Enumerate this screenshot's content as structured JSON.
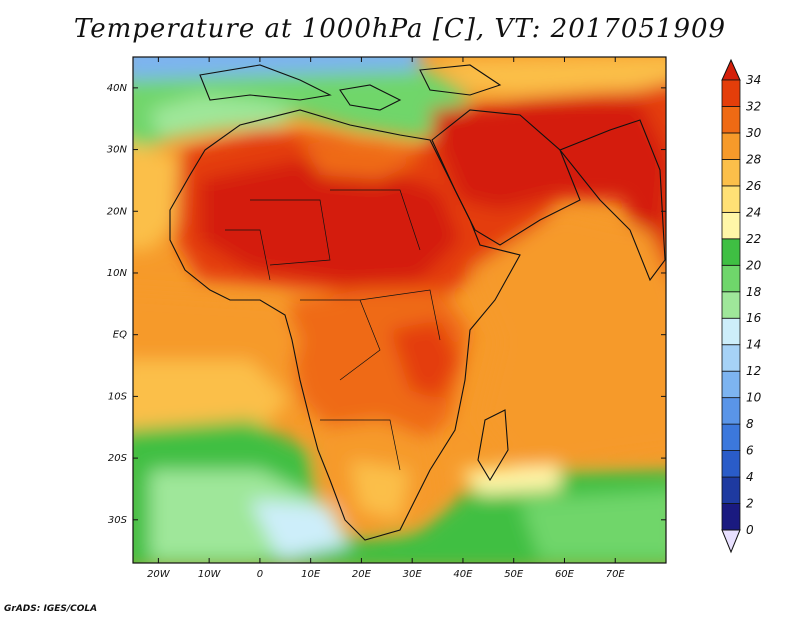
{
  "title": "Temperature at 1000hPa [C], VT: 2017051909",
  "credit": "GrADS: IGES/COLA",
  "map": {
    "variable": "Temperature at 1000hPa",
    "units": "C",
    "valid_time": "2017051909",
    "lon_range": [
      -25,
      80
    ],
    "lat_range": [
      -37,
      45
    ],
    "lon_ticks": [
      "20W",
      "10W",
      "0",
      "10E",
      "20E",
      "30E",
      "40E",
      "50E",
      "60E",
      "70E"
    ],
    "lat_ticks": [
      "40N",
      "30N",
      "20N",
      "10N",
      "EQ",
      "10S",
      "20S",
      "30S"
    ]
  },
  "colorbar": {
    "levels": [
      "0",
      "2",
      "4",
      "6",
      "8",
      "10",
      "12",
      "14",
      "16",
      "18",
      "20",
      "22",
      "24",
      "26",
      "28",
      "30",
      "32",
      "34"
    ],
    "colors": [
      "#1a1a80",
      "#1e3aa0",
      "#2a5cc8",
      "#3c78dc",
      "#5a95e8",
      "#7db4f0",
      "#a6d2f6",
      "#cdeefa",
      "#9fe79a",
      "#6fd66b",
      "#3fbf43",
      "#fff6a8",
      "#ffe075",
      "#fbbf4a",
      "#f69a2a",
      "#ef6a14",
      "#e43e0a",
      "#d41f0a"
    ],
    "under_color": "#e8e0ff"
  }
}
